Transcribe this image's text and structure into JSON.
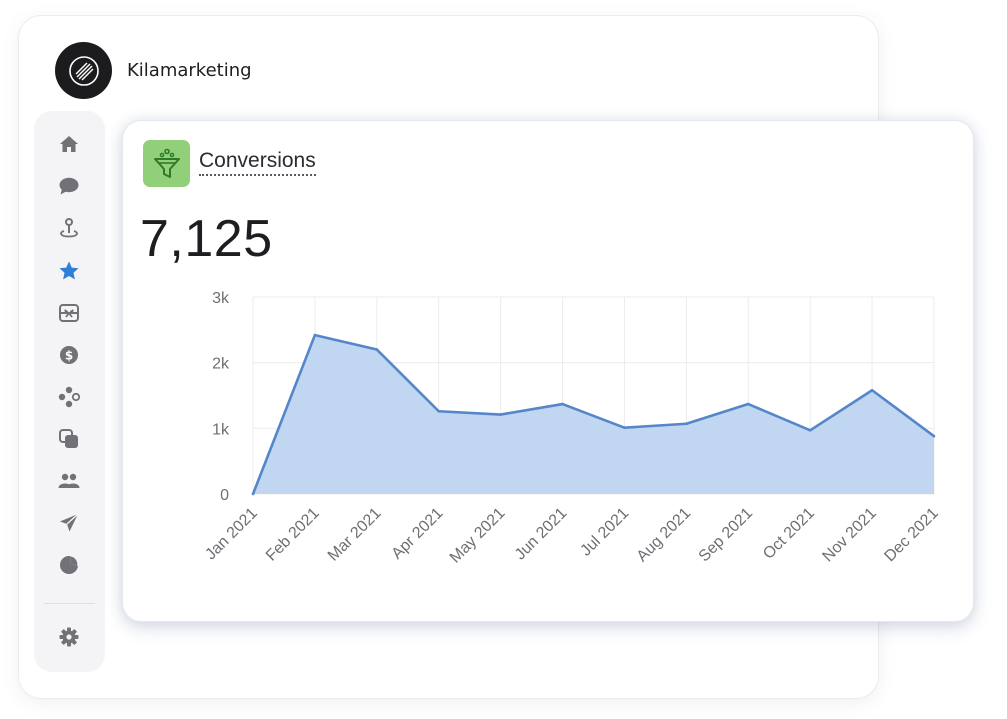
{
  "app": {
    "brand_name": "Kilamarketing"
  },
  "sidebar": {
    "items": [
      {
        "name": "home-icon",
        "active": false
      },
      {
        "name": "chat-icon",
        "active": false
      },
      {
        "name": "location-pin-icon",
        "active": false
      },
      {
        "name": "star-icon",
        "active": true
      },
      {
        "name": "gift-card-icon",
        "active": false
      },
      {
        "name": "dollar-icon",
        "active": false
      },
      {
        "name": "integrations-icon",
        "active": false
      },
      {
        "name": "pages-icon",
        "active": false
      },
      {
        "name": "users-icon",
        "active": false
      },
      {
        "name": "send-icon",
        "active": false
      },
      {
        "name": "pie-chart-icon",
        "active": false
      }
    ],
    "settings": {
      "name": "gear-icon"
    }
  },
  "colors": {
    "accent": "#2f7fd6",
    "icon_gray": "#717177",
    "card_icon_bg": "#91d079",
    "line": "#5586c9",
    "area": "#c1d6f0"
  },
  "card": {
    "title": "Conversions",
    "value": "7,125",
    "icon": "funnel-icon"
  },
  "chart_data": {
    "type": "area",
    "categories": [
      "Jan 2021",
      "Feb 2021",
      "Mar 2021",
      "Apr 2021",
      "May 2021",
      "Jun 2021",
      "Jul 2021",
      "Aug 2021",
      "Sep 2021",
      "Oct 2021",
      "Nov 2021",
      "Dec 2021"
    ],
    "values": [
      0,
      2420,
      2200,
      1260,
      1210,
      1370,
      1010,
      1070,
      1370,
      970,
      1580,
      880
    ],
    "y_ticks": [
      "0",
      "1k",
      "2k",
      "3k"
    ],
    "ylim": [
      0,
      3000
    ],
    "grid": true,
    "legend": "none"
  }
}
